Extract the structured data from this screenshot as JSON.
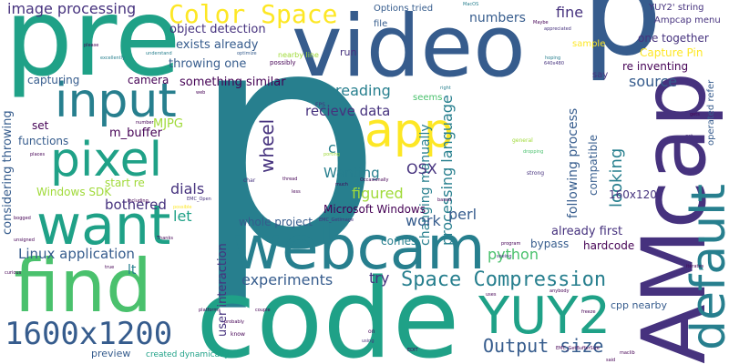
{
  "palette": {
    "dark_purple": "#440154",
    "indigo": "#46327e",
    "blue": "#365c8d",
    "teal_blue": "#277f8e",
    "teal": "#1fa187",
    "green": "#4ac16d",
    "light_green": "#a0da39",
    "yellow": "#fde725"
  },
  "words": {
    "p_big": "p",
    "p_top": "p",
    "code": "code",
    "video": "video",
    "pre": "pre",
    "webcam": "webcam",
    "AMcap": "AMcap",
    "default": "default",
    "find": "find",
    "want": "want",
    "pixel": "pixel",
    "input": "input",
    "app": "app",
    "YUY2": "YUY2",
    "n1600x1200": "1600x1200",
    "Color_Space": "Color Space",
    "Space_Compression": "Space Compression",
    "Output_size": "Output size",
    "image_processing": "image processing",
    "object_detection": "object detection",
    "exists_already": "exists already",
    "throwing_one": "throwing one",
    "something_similar": "something similar",
    "reading": "reading",
    "recieve_data": "recieve data",
    "source": "source",
    "numbers": "numbers",
    "fine": "fine",
    "Options_tried": "Options tried",
    "file": "file",
    "run": "run",
    "sample": "sample",
    "say": "say",
    "YUY2_string": "YUY2' string",
    "Ampcap_menu": "Ampcap menu",
    "one_together": "one together",
    "Capture_Pin": "Capture Pin",
    "re_inventing": "re inventing",
    "capturing": "capturing",
    "camera": "camera",
    "MJPG": "MJPG",
    "m_buffer": "m_buffer",
    "functions": "functions",
    "set": "set",
    "considering_throwing": "considering throwing",
    "start_re": "start re",
    "Windows_SDK": "Windows SDK",
    "bothered": "bothered",
    "dials": "dials",
    "let": "let",
    "wheel": "wheel",
    "user_interaction": "user interaction",
    "OSX": "OSX",
    "Wanting": "Wanting",
    "figured": "figured",
    "c": "c",
    "Microsoft_Windows": "Microsoft Windows",
    "whole_project": "whole project",
    "work": "work",
    "perl": "perl",
    "Linux_application": "Linux application",
    "experiments": "experiments",
    "try": "try",
    "python": "python",
    "lt": "lt",
    "comes": "comes",
    "already_first": "already first",
    "bypass": "bypass",
    "hardcode": "hardcode",
    "following_process": "following process",
    "compatible": "compatible",
    "looking": "looking",
    "n160x120": "160x120",
    "cpp_nearby": "cpp nearby",
    "preview": "preview",
    "created_dynamically": "created dynamically",
    "changing_manually": "changing manually",
    "processing_language": "processing language",
    "seems": "seems",
    "operated_refer": "operated refer",
    "Maybe": "Maybe",
    "nearby_line": "nearby line",
    "possibly": "possibly",
    "excellently": "excellently",
    "appreciated": "appreciated",
    "optimize": "optimize",
    "please": "please",
    "understand": "understand",
    "hoping": "hoping",
    "n640x480": "640x480",
    "MacOS": "MacOS",
    "FPS": "FPS",
    "number": "number",
    "general": "general",
    "right": "right",
    "dropping": "dropping",
    "strong": "strong",
    "gets": "gets",
    "got": "got",
    "places": "places",
    "char": "char",
    "porting": "porting",
    "thread": "thread",
    "much": "much",
    "less": "less",
    "occasionally": "Occasionally",
    "based": "based",
    "possible": "possible",
    "including": "including",
    "EMC_Open": "EMC_Open",
    "EMC_GetImage": "EMC_GetImage",
    "bogged": "bogged",
    "unsigned": "unsigned",
    "curious": "curious",
    "true": "true",
    "thanks": "Thanks",
    "program": "program",
    "seeing": "seeing",
    "platforms": "platforms",
    "probably": "probably",
    "couple": "couple",
    "know": "know",
    "using": "using",
    "on": "on",
    "edit": "EDIT",
    "EMC_GetBufferSize": "EMC_GetBufferSize",
    "freeze": "freeze",
    "anybody": "anybody",
    "iterates": "iterates",
    "uses": "uses",
    "said": "said",
    "maclib": "maclib",
    "web": "web",
    "resource": "resource",
    "good": "good",
    "frame": "frame",
    "wait": "wait",
    "loop": "loop"
  }
}
